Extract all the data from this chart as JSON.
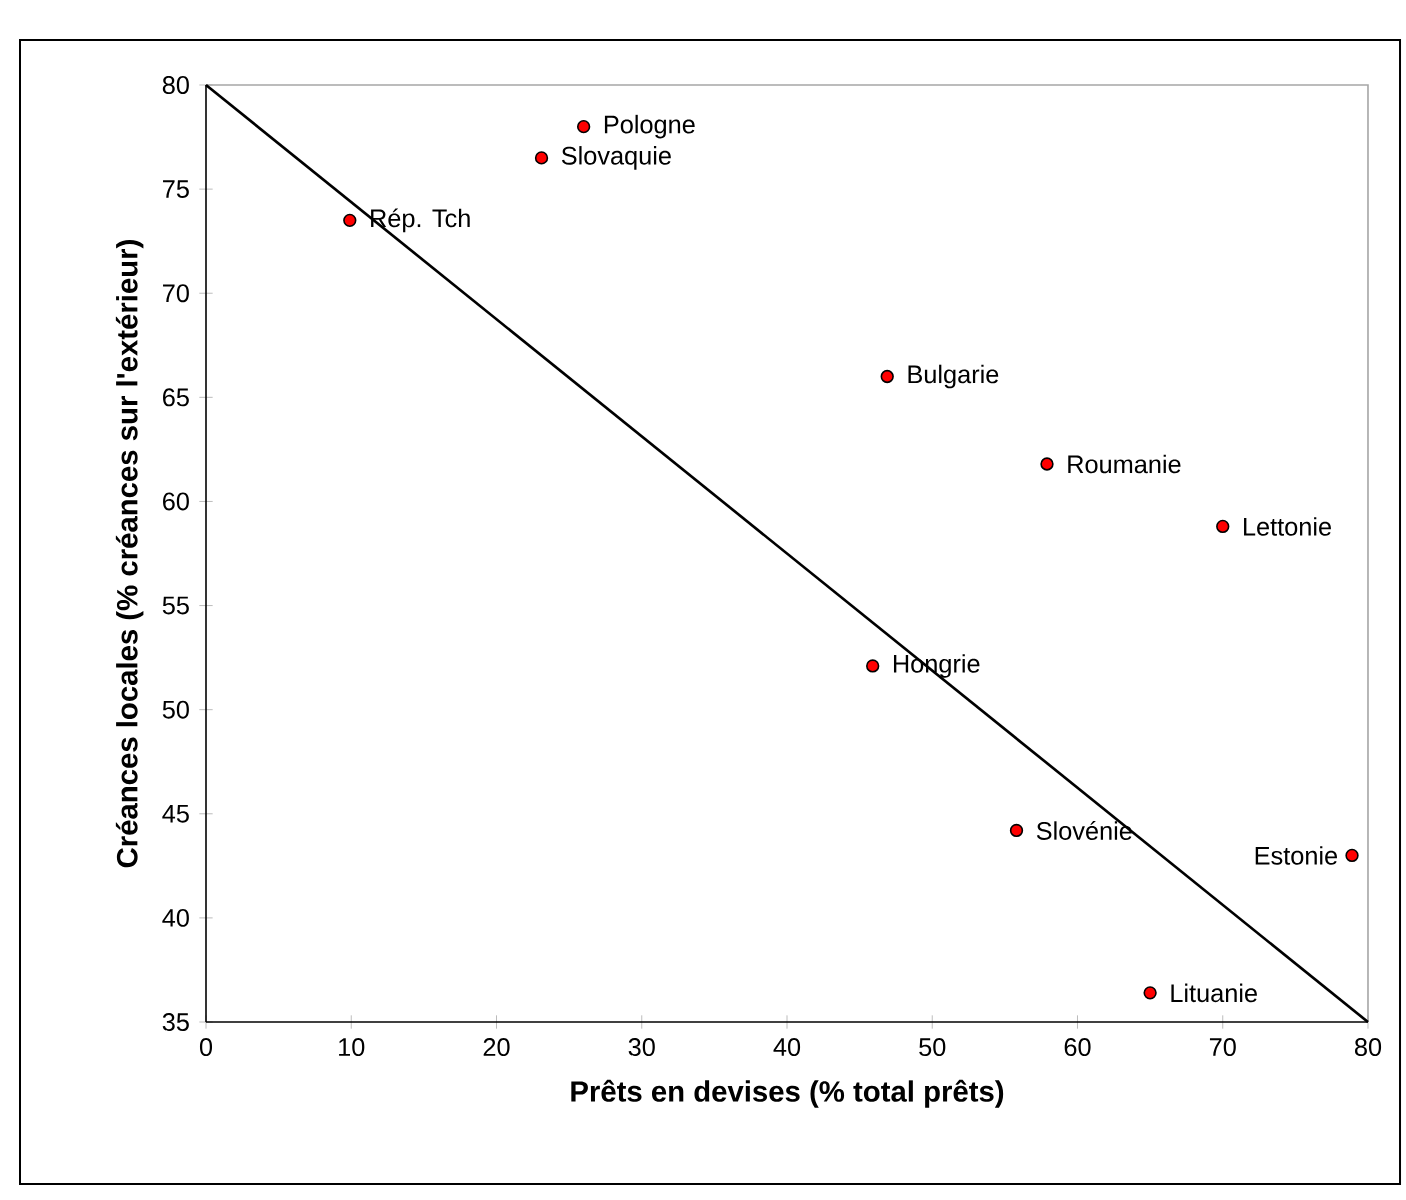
{
  "chart_data": {
    "type": "scatter",
    "xlabel": "Prêts en devises (% total prêts)",
    "ylabel": "Créances locales (% créances sur l'extérieur)",
    "xlim": [
      0,
      80
    ],
    "ylim": [
      35,
      80
    ],
    "xticks": [
      0,
      10,
      20,
      30,
      40,
      50,
      60,
      70,
      80
    ],
    "yticks": [
      35,
      40,
      45,
      50,
      55,
      60,
      65,
      70,
      75,
      80
    ],
    "grid": false,
    "series": [
      {
        "marker": "circle",
        "color": "#ff0000",
        "x": [
          26.0,
          23.1,
          9.9,
          46.9,
          57.9,
          70.0,
          45.9,
          55.8,
          78.9,
          65.0
        ],
        "values": [
          78.0,
          76.5,
          73.5,
          66.0,
          61.8,
          58.8,
          52.1,
          44.2,
          43.0,
          36.4
        ]
      },
      {
        "type": "line",
        "marker": "none",
        "color": "#000000",
        "x": [
          0,
          80
        ],
        "values": [
          80,
          35
        ]
      }
    ],
    "annotations": [
      {
        "text": "Pologne",
        "x": 26.0,
        "y": 78.0
      },
      {
        "text": "Slovaquie",
        "x": 23.1,
        "y": 76.5
      },
      {
        "text": "Rép. Tch",
        "x": 9.9,
        "y": 73.5
      },
      {
        "text": "Bulgarie",
        "x": 46.9,
        "y": 66.0
      },
      {
        "text": "Roumanie",
        "x": 57.9,
        "y": 61.8
      },
      {
        "text": "Lettonie",
        "x": 70.0,
        "y": 58.8
      },
      {
        "text": "Hongrie",
        "x": 45.9,
        "y": 52.1
      },
      {
        "text": "Slovénie",
        "x": 55.8,
        "y": 44.2
      },
      {
        "text": "Estonie",
        "x": 78.9,
        "y": 43.0
      },
      {
        "text": "Lituanie",
        "x": 65.0,
        "y": 36.4
      }
    ]
  }
}
